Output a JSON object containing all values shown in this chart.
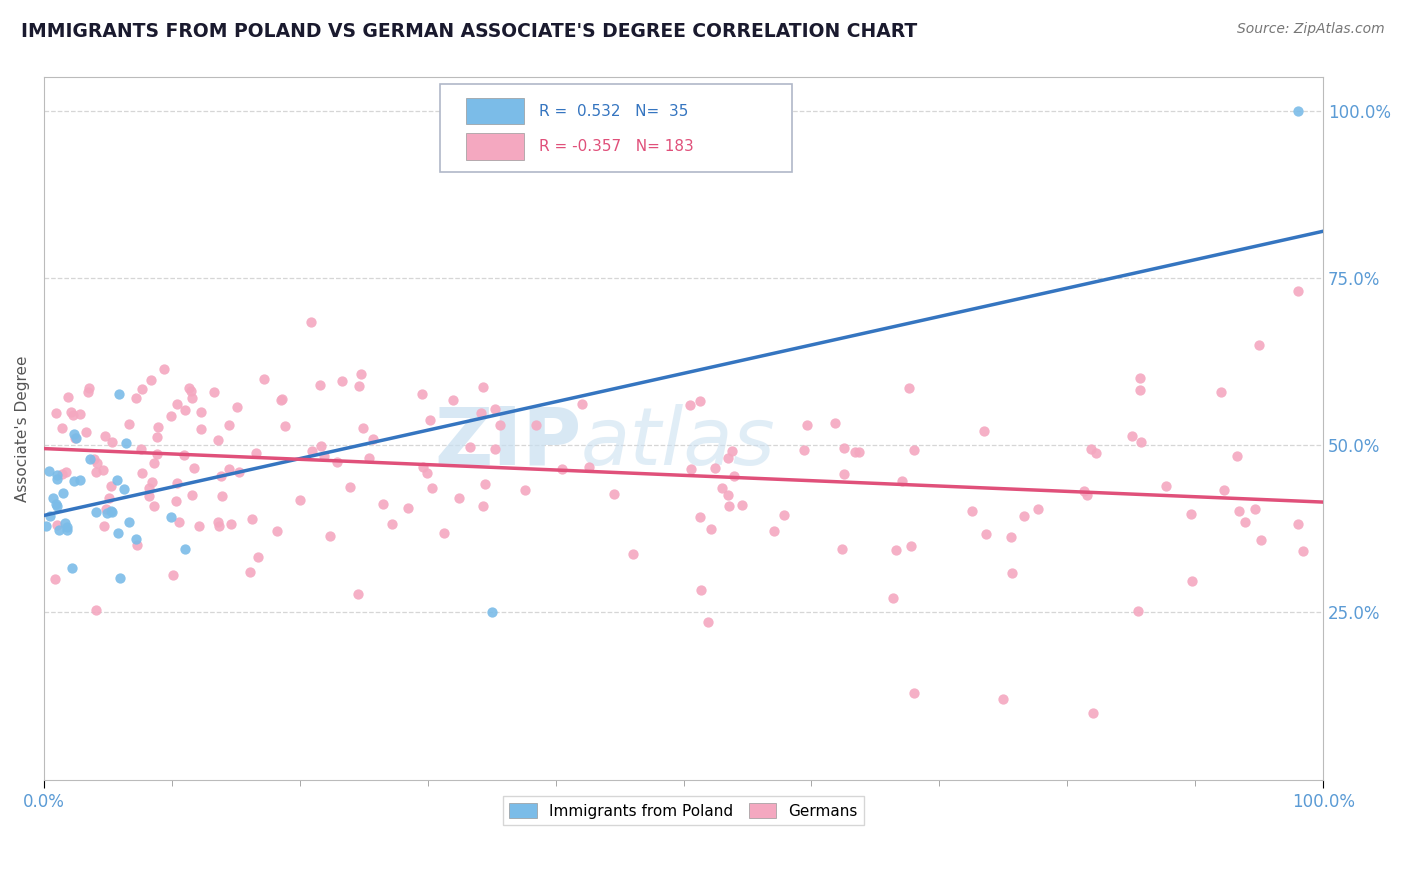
{
  "title": "IMMIGRANTS FROM POLAND VS GERMAN ASSOCIATE'S DEGREE CORRELATION CHART",
  "source_text": "Source: ZipAtlas.com",
  "ylabel": "Associate's Degree",
  "watermark": "ZIPatlas",
  "blue_R": 0.532,
  "blue_N": 35,
  "pink_R": -0.357,
  "pink_N": 183,
  "blue_color": "#7bbce8",
  "pink_color": "#f4a8c0",
  "blue_line_color": "#3575c0",
  "pink_line_color": "#e0507a",
  "xlim": [
    0.0,
    1.0
  ],
  "ylim": [
    0.0,
    1.05
  ],
  "x_tick_labels": [
    "0.0%",
    "100.0%"
  ],
  "y_ticks": [
    0.25,
    0.5,
    0.75,
    1.0
  ],
  "y_tick_labels": [
    "25.0%",
    "50.0%",
    "75.0%",
    "100.0%"
  ],
  "background_color": "#ffffff",
  "grid_color": "#cccccc",
  "blue_line_x0": 0.0,
  "blue_line_y0": 0.395,
  "blue_line_x1": 1.0,
  "blue_line_y1": 0.82,
  "pink_line_x0": 0.0,
  "pink_line_y0": 0.495,
  "pink_line_x1": 1.0,
  "pink_line_y1": 0.415
}
